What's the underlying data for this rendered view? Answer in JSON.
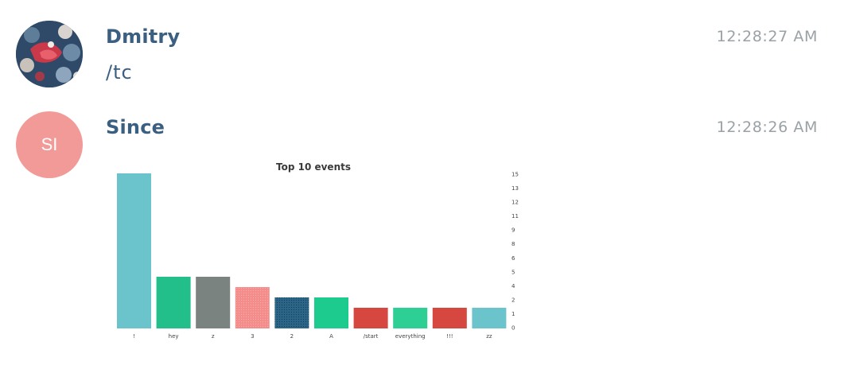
{
  "messages": [
    {
      "sender": "Dmitry",
      "time": "12:28:27 AM",
      "text": "/tc",
      "avatar": {
        "type": "photo"
      }
    },
    {
      "sender": "Since",
      "time": "12:28:26 AM",
      "avatar": {
        "type": "initials",
        "initials": "SI",
        "color": "#f29a97"
      }
    }
  ],
  "colors": {
    "sender": "#3b5f80",
    "time": "#9aa2a6"
  },
  "chart_data": {
    "type": "bar",
    "title": "Top 10 events",
    "categories": [
      "!",
      "hey",
      "z",
      "3",
      "2",
      "A",
      "/start",
      "everything",
      "!!!",
      "zz"
    ],
    "values": [
      15,
      5,
      5,
      4,
      3,
      3,
      2,
      2,
      2,
      2
    ],
    "colors": [
      "#6bc4cc",
      "#22bf8b",
      "#7b8381",
      "#f48c8a",
      "#2b6689",
      "#1ecb8e",
      "#d5473f",
      "#2ecf94",
      "#d5473f",
      "#6bc4cc"
    ],
    "yticks": [
      "15",
      "13",
      "12",
      "11",
      "9",
      "8",
      "6",
      "5",
      "4",
      "2",
      "1",
      "0"
    ],
    "ylim": [
      0,
      15
    ],
    "yaxis_position": "right",
    "xlabel": "",
    "ylabel": ""
  }
}
